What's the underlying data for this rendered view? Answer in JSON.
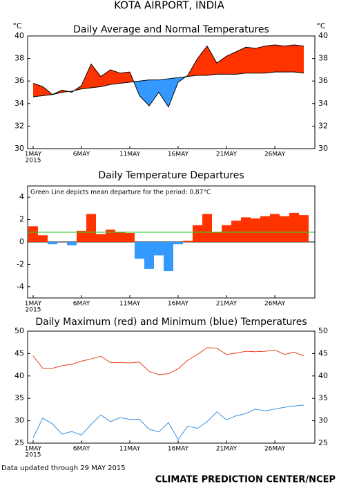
{
  "title": "KOTA AIRPORT, INDIA",
  "footer_left": "Data updated through 29 MAY 2015",
  "footer_right": "CLIMATE PREDICTION CENTER/NCEP",
  "chart_data": [
    {
      "type": "area",
      "title": "Daily Average and Normal Temperatures",
      "y_unit": "°C",
      "x": [
        1,
        2,
        3,
        4,
        5,
        6,
        7,
        8,
        9,
        10,
        11,
        12,
        13,
        14,
        15,
        16,
        17,
        18,
        19,
        20,
        21,
        22,
        23,
        24,
        25,
        26,
        27,
        28,
        29
      ],
      "series": [
        {
          "color": "#000000",
          "values": [
            35.8,
            35.5,
            34.8,
            35.2,
            35.0,
            35.6,
            37.5,
            36.4,
            37.0,
            36.7,
            36.8,
            34.7,
            33.8,
            35.0,
            33.7,
            35.9,
            36.5,
            38.0,
            39.1,
            37.6,
            38.2,
            38.6,
            39.0,
            38.9,
            39.1,
            39.2,
            39.1,
            39.2,
            39.1
          ]
        },
        {
          "color": "#000000",
          "values": [
            34.6,
            34.7,
            34.8,
            35.0,
            35.1,
            35.3,
            35.4,
            35.5,
            35.7,
            35.8,
            35.9,
            36.0,
            36.1,
            36.1,
            36.2,
            36.3,
            36.4,
            36.5,
            36.5,
            36.6,
            36.6,
            36.6,
            36.7,
            36.7,
            36.7,
            36.8,
            36.8,
            36.8,
            36.7
          ]
        }
      ],
      "above_color": "#ff3300",
      "below_color": "#3399ff",
      "xlim": [
        0.43,
        30.14
      ],
      "xticks": [
        {
          "value": 1,
          "label": "1MAY"
        },
        {
          "value": 6,
          "label": "6MAY"
        },
        {
          "value": 11,
          "label": "11MAY"
        },
        {
          "value": 16,
          "label": "16MAY"
        },
        {
          "value": 21,
          "label": "21MAY"
        },
        {
          "value": 26,
          "label": "26MAY"
        }
      ],
      "x_year_label": "2015",
      "ylim": [
        30,
        40
      ],
      "yticks": [
        30,
        32,
        34,
        36,
        38,
        40
      ]
    },
    {
      "type": "bar",
      "title": "Daily Temperature Departures",
      "annotation": "Green Line depicts mean departure for the period: 0.87°C",
      "x": [
        1,
        2,
        3,
        4,
        5,
        6,
        7,
        8,
        9,
        10,
        11,
        12,
        13,
        14,
        15,
        16,
        17,
        18,
        19,
        20,
        21,
        22,
        23,
        24,
        25,
        26,
        27,
        28,
        29
      ],
      "values": [
        1.4,
        0.6,
        -0.2,
        0,
        -0.3,
        1.0,
        2.5,
        0.7,
        1.1,
        0.9,
        0.8,
        -1.5,
        -2.4,
        -1.2,
        -2.6,
        -0.2,
        0.1,
        1.5,
        2.5,
        0.9,
        1.5,
        1.9,
        2.2,
        2.1,
        2.3,
        2.5,
        2.3,
        2.6,
        2.4
      ],
      "positive_color": "#ff3300",
      "negative_color": "#3399ff",
      "mean_line": {
        "value": 0.87,
        "color": "#33cc33"
      },
      "xlim": [
        0.43,
        30.14
      ],
      "xticks": [
        {
          "value": 1,
          "label": "1MAY"
        },
        {
          "value": 6,
          "label": "6MAY"
        },
        {
          "value": 11,
          "label": "11MAY"
        },
        {
          "value": 16,
          "label": "16MAY"
        },
        {
          "value": 21,
          "label": "21MAY"
        },
        {
          "value": 26,
          "label": "26MAY"
        }
      ],
      "x_year_label": "2015",
      "ylim": [
        -5,
        5
      ],
      "yticks": [
        -4,
        -2,
        0,
        2,
        4
      ]
    },
    {
      "type": "line",
      "title": "Daily Maximum (red) and Minimum (blue) Temperatures",
      "x": [
        1,
        2,
        3,
        4,
        5,
        6,
        7,
        8,
        9,
        10,
        11,
        12,
        13,
        14,
        15,
        16,
        17,
        18,
        19,
        20,
        21,
        22,
        23,
        24,
        25,
        26,
        27,
        28,
        29
      ],
      "series": [
        {
          "color": "#e8401c",
          "values": [
            44.5,
            41.7,
            41.7,
            42.3,
            42.6,
            43.3,
            43.8,
            44.4,
            43.0,
            43.0,
            42.9,
            43.1,
            41.0,
            40.3,
            40.5,
            41.6,
            43.5,
            44.8,
            46.3,
            46.2,
            44.8,
            45.1,
            45.5,
            45.4,
            45.5,
            45.8,
            44.8,
            45.3,
            44.5
          ]
        },
        {
          "color": "#3a8fdf",
          "values": [
            26.2,
            30.6,
            29.3,
            27.0,
            27.6,
            26.8,
            29.2,
            31.3,
            29.8,
            30.7,
            30.3,
            30.3,
            28.1,
            27.5,
            29.6,
            25.8,
            28.8,
            28.3,
            29.8,
            32.0,
            30.2,
            31.1,
            31.6,
            32.6,
            32.2,
            32.6,
            33.0,
            33.3,
            33.5
          ]
        }
      ],
      "xlim": [
        0.43,
        30.14
      ],
      "xticks": [
        {
          "value": 1,
          "label": "1MAY"
        },
        {
          "value": 6,
          "label": "6MAY"
        },
        {
          "value": 11,
          "label": "11MAY"
        },
        {
          "value": 16,
          "label": "16MAY"
        },
        {
          "value": 21,
          "label": "21MAY"
        },
        {
          "value": 26,
          "label": "26MAY"
        }
      ],
      "x_year_label": "2015",
      "ylim": [
        25,
        50
      ],
      "yticks": [
        25,
        30,
        35,
        40,
        45,
        50
      ]
    }
  ]
}
